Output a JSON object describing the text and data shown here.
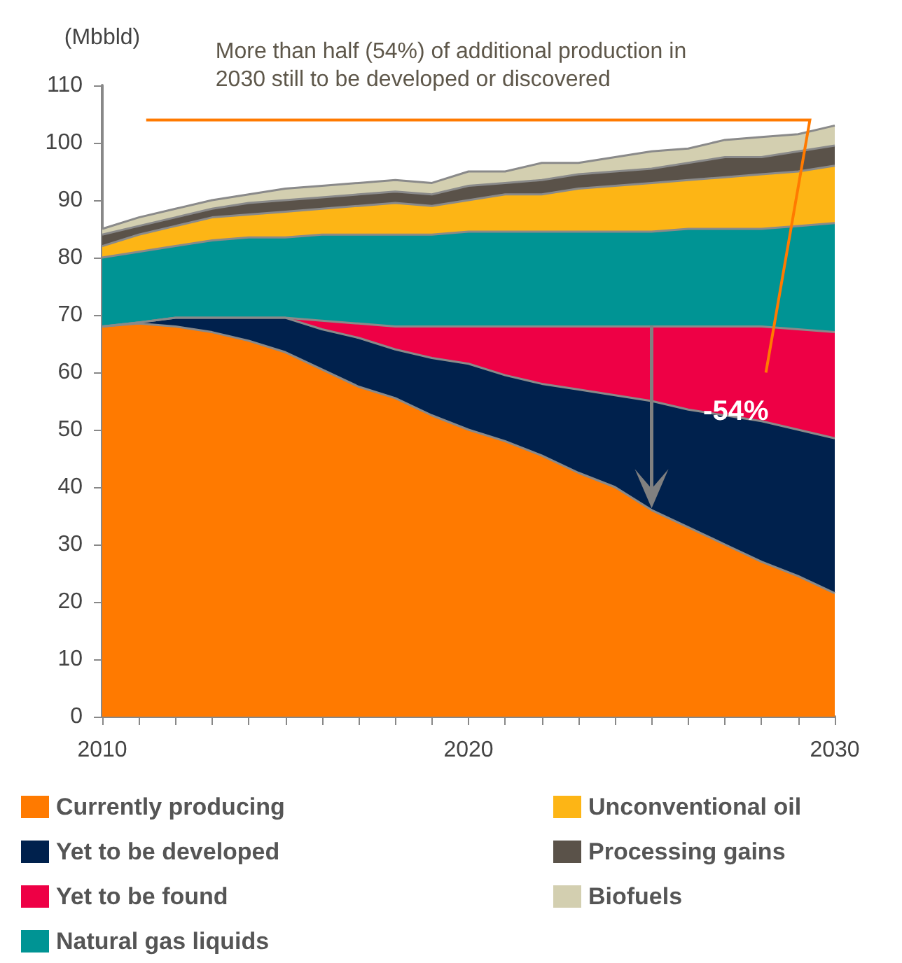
{
  "chart_data": {
    "type": "area",
    "stacked": true,
    "ylabel": "(Mbbld)",
    "x": [
      2010,
      2011,
      2012,
      2013,
      2014,
      2015,
      2016,
      2017,
      2018,
      2019,
      2020,
      2021,
      2022,
      2023,
      2024,
      2025,
      2026,
      2027,
      2028,
      2029,
      2030
    ],
    "xlim": [
      2010,
      2030
    ],
    "xticks": [
      2010,
      2020,
      2030
    ],
    "ylim": [
      0,
      110
    ],
    "yticks": [
      0,
      10,
      20,
      30,
      40,
      50,
      60,
      70,
      80,
      90,
      100,
      110
    ],
    "grid": false,
    "legend": "bottom",
    "series": [
      {
        "name": "Currently producing",
        "color": "#ff7a00",
        "values": [
          68,
          68.5,
          68,
          67,
          65.5,
          63.5,
          60.5,
          57.5,
          55.5,
          52.5,
          50,
          48,
          45.5,
          42.5,
          40,
          36,
          33,
          30,
          27,
          24.5,
          21.5
        ]
      },
      {
        "name": "Yet to be developed",
        "color": "#00214d",
        "values": [
          0,
          0.2,
          1.5,
          2.5,
          4,
          6,
          7,
          8.5,
          8.5,
          10,
          11.5,
          11.5,
          12.5,
          14.5,
          16,
          19,
          20.5,
          22.5,
          24.5,
          25.5,
          27
        ]
      },
      {
        "name": "Yet to be found",
        "color": "#ee0045",
        "values": [
          0,
          0,
          0,
          0,
          0,
          0,
          1.5,
          2.5,
          4,
          5.5,
          6.5,
          8.5,
          10,
          11,
          12,
          13,
          14.5,
          15.5,
          16.5,
          17.5,
          18.5
        ]
      },
      {
        "name": "Natural gas liquids",
        "color": "#009494",
        "values": [
          12,
          12.3,
          12.5,
          13.5,
          14,
          14,
          15,
          15.5,
          16,
          16,
          16.5,
          16.5,
          16.5,
          16.5,
          16.5,
          16.5,
          17,
          17,
          17,
          18,
          19
        ]
      },
      {
        "name": "Unconventional oil",
        "color": "#fdb515",
        "values": [
          2,
          3,
          3.5,
          4,
          4,
          4.5,
          4.5,
          5,
          5.5,
          5,
          5.5,
          6.5,
          6.5,
          7.5,
          8,
          8.5,
          8.5,
          9,
          9.5,
          9.5,
          10
        ]
      },
      {
        "name": "Processing gains",
        "color": "#5a5249",
        "values": [
          2,
          1.5,
          1.5,
          1.5,
          2,
          2,
          2,
          2,
          2,
          2,
          2.5,
          2,
          2.5,
          2.5,
          2.5,
          2.5,
          3,
          3.5,
          3,
          3.5,
          3.5
        ]
      },
      {
        "name": "Biofuels",
        "color": "#d3cfb0",
        "values": [
          1,
          1.5,
          1.5,
          1.5,
          1.5,
          2,
          2,
          2,
          2,
          2,
          2.5,
          2,
          3,
          2,
          2.5,
          3,
          2.5,
          3,
          3.5,
          3,
          3.5
        ]
      }
    ],
    "annotations": [
      "More than half (54%) of additional production in\n2030 still to be developed or discovered",
      {
        "text": "-54%",
        "x": 2027.3,
        "y": 53
      }
    ]
  }
}
